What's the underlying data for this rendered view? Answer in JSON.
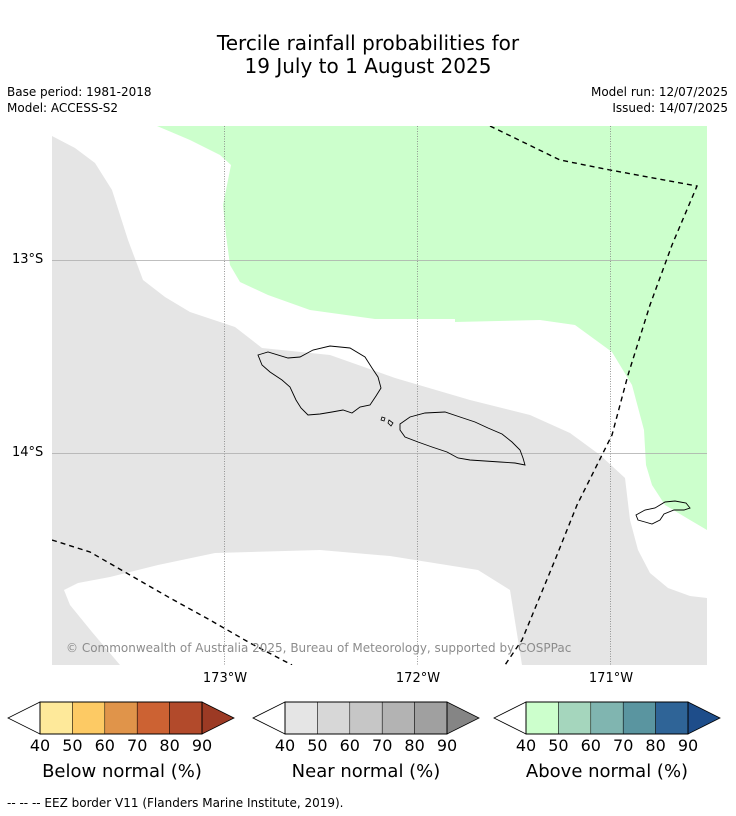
{
  "header": {
    "title_line1": "Tercile rainfall probabilities for",
    "title_line2": "19 July to 1 August 2025",
    "base_period": "Base period: 1981-2018",
    "model": "Model: ACCESS-S2",
    "model_run": "Model run: 12/07/2025",
    "issued": "Issued: 14/07/2025"
  },
  "map": {
    "lat_labels": [
      "13°S",
      "14°S"
    ],
    "lon_labels": [
      "173°W",
      "172°W",
      "171°W"
    ],
    "copyright": "© Commonwealth of Australia 2025, Bureau of Meteorology, supported by COSPPac",
    "colors": {
      "near_normal_area": "#e5e5e5",
      "above_normal_area": "#ccffcc",
      "gridline": "#808080",
      "eez_border": "#000000"
    }
  },
  "legends": [
    {
      "title": "Below normal (%)",
      "ticks": [
        "40",
        "50",
        "60",
        "70",
        "80",
        "90"
      ],
      "colors": [
        "#ffffff",
        "#fee99a",
        "#fdca64",
        "#e0944a",
        "#cc6233",
        "#b24a2b",
        "#9c3a24"
      ]
    },
    {
      "title": "Near normal (%)",
      "ticks": [
        "40",
        "50",
        "60",
        "70",
        "80",
        "90"
      ],
      "colors": [
        "#ffffff",
        "#e5e5e5",
        "#d7d7d7",
        "#c6c6c6",
        "#b3b3b3",
        "#a0a0a0",
        "#858585"
      ]
    },
    {
      "title": "Above normal (%)",
      "ticks": [
        "40",
        "50",
        "60",
        "70",
        "80",
        "90"
      ],
      "colors": [
        "#ffffff",
        "#ccffcc",
        "#a5d6bd",
        "#80b5b0",
        "#5a95a0",
        "#2f6497",
        "#1e4d8a"
      ]
    }
  ],
  "footnote": "--  --  -- EEZ border V11 (Flanders Marine Institute, 2019)."
}
